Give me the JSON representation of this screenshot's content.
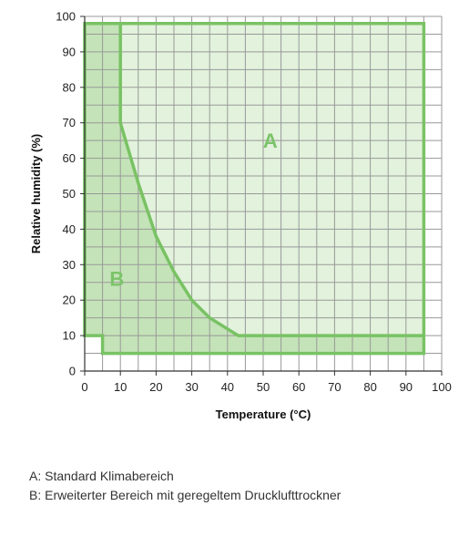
{
  "chart_data": {
    "type": "area",
    "xlabel": "Temperature (°C)",
    "ylabel": "Relative humidity (%)",
    "xlim": [
      0,
      100
    ],
    "ylim": [
      0,
      100
    ],
    "x_ticks": [
      0,
      10,
      20,
      30,
      40,
      50,
      60,
      70,
      80,
      90,
      100
    ],
    "y_ticks": [
      0,
      10,
      20,
      30,
      40,
      50,
      60,
      70,
      80,
      90,
      100
    ],
    "minor_grid_step": 5,
    "grid": true,
    "regions": [
      {
        "label": "A",
        "label_pos": [
          52,
          63
        ],
        "boundary": [
          [
            0,
            98
          ],
          [
            95,
            98
          ],
          [
            95,
            5
          ],
          [
            5,
            5
          ],
          [
            5,
            10
          ],
          [
            0,
            10
          ]
        ]
      },
      {
        "label": "B",
        "label_pos": [
          9,
          24
        ],
        "boundary": [
          [
            0,
            98
          ],
          [
            10,
            98
          ],
          [
            10,
            70
          ],
          [
            15,
            53
          ],
          [
            20,
            38
          ],
          [
            25,
            28
          ],
          [
            30,
            20
          ],
          [
            35,
            15
          ],
          [
            43,
            10
          ],
          [
            95,
            10
          ],
          [
            95,
            5
          ],
          [
            5,
            5
          ],
          [
            5,
            10
          ],
          [
            0,
            10
          ]
        ]
      }
    ],
    "curve": [
      [
        10,
        70
      ],
      [
        15,
        53
      ],
      [
        20,
        38
      ],
      [
        25,
        28
      ],
      [
        30,
        20
      ],
      [
        35,
        15
      ],
      [
        43,
        10
      ],
      [
        95,
        10
      ]
    ],
    "colors": {
      "fill_a": "#e2f2dc",
      "fill_b": "#c4e3b8",
      "line": "#79c264",
      "grid": "#999999"
    }
  },
  "legend": [
    {
      "text": "A: Standard Klimabereich"
    },
    {
      "text": "B: Erweiterter Bereich mit geregeltem Drucklufttrockner"
    }
  ]
}
